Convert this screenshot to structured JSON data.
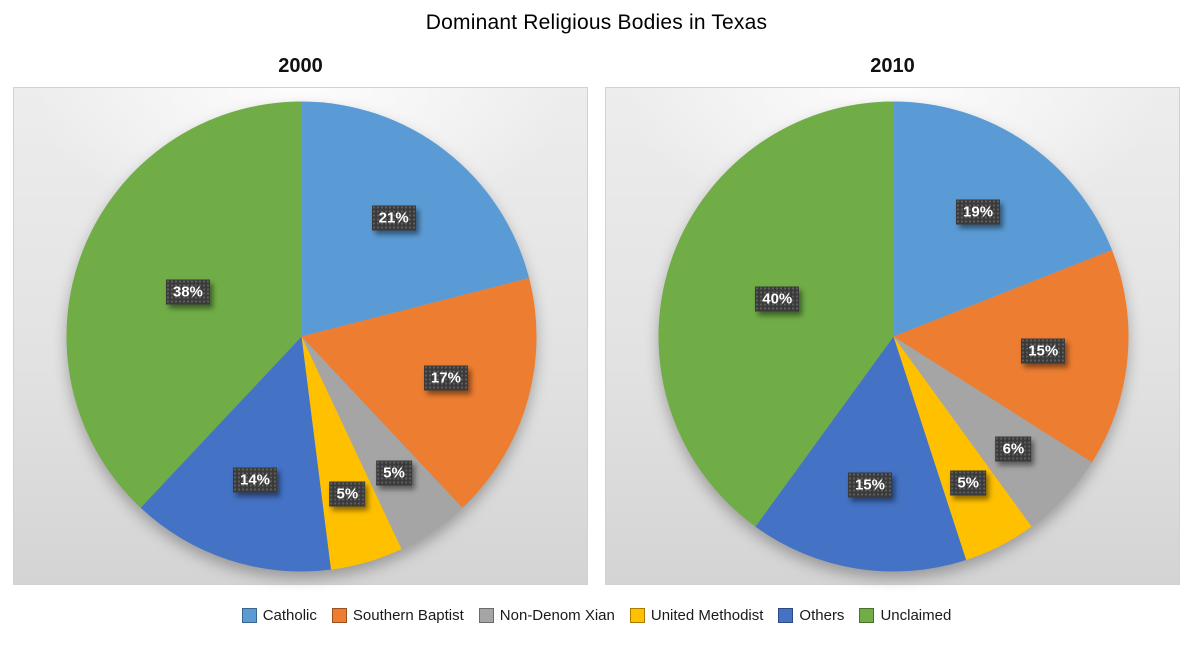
{
  "title": "Dominant Religious Bodies in Texas",
  "chart_data": [
    {
      "type": "pie",
      "title": "2000",
      "categories": [
        "Catholic",
        "Southern Baptist",
        "Non-Denom Xian",
        "United Methodist",
        "Others",
        "Unclaimed"
      ],
      "values": [
        21,
        17,
        5,
        5,
        14,
        38
      ],
      "data_labels": [
        "21%",
        "17%",
        "5%",
        "5%",
        "14%",
        "38%"
      ],
      "colors": [
        "#5B9BD5",
        "#ED7D31",
        "#A5A5A5",
        "#FFC000",
        "#4472C4",
        "#70AD47"
      ],
      "units": "percent",
      "start_angle_deg": 0,
      "direction": "clockwise",
      "legend_position": "shared-bottom"
    },
    {
      "type": "pie",
      "title": "2010",
      "categories": [
        "Catholic",
        "Southern Baptist",
        "Non-Denom Xian",
        "United Methodist",
        "Others",
        "Unclaimed"
      ],
      "values": [
        19,
        15,
        6,
        5,
        15,
        40
      ],
      "data_labels": [
        "19%",
        "15%",
        "6%",
        "5%",
        "15%",
        "40%"
      ],
      "colors": [
        "#5B9BD5",
        "#ED7D31",
        "#A5A5A5",
        "#FFC000",
        "#4472C4",
        "#70AD47"
      ],
      "units": "percent",
      "start_angle_deg": 0,
      "direction": "clockwise",
      "legend_position": "shared-bottom"
    }
  ],
  "legend": {
    "position": "bottom",
    "items": [
      {
        "label": "Catholic",
        "color": "#5B9BD5"
      },
      {
        "label": "Southern Baptist",
        "color": "#ED7D31"
      },
      {
        "label": "Non-Denom Xian",
        "color": "#A5A5A5"
      },
      {
        "label": "United Methodist",
        "color": "#FFC000"
      },
      {
        "label": "Others",
        "color": "#4472C4"
      },
      {
        "label": "Unclaimed",
        "color": "#70AD47"
      }
    ]
  },
  "label_style": {
    "background": "#3A3A3A",
    "text_color": "#FFFFFF"
  }
}
